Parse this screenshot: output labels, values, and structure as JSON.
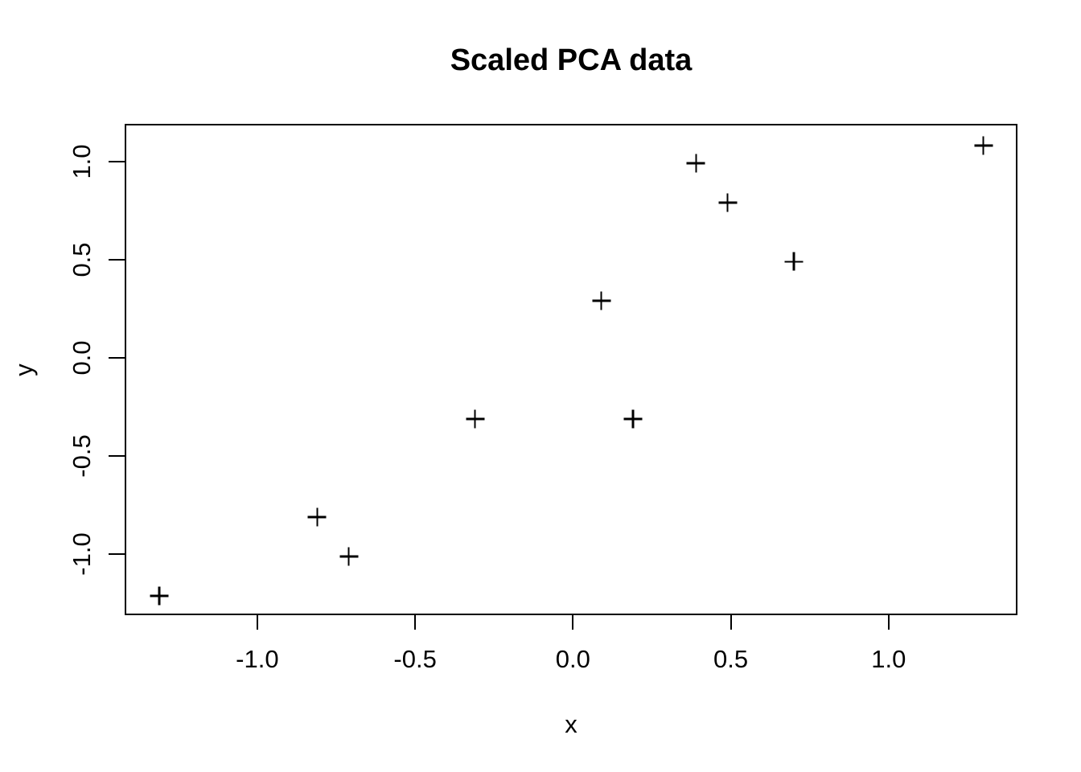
{
  "chart_data": {
    "type": "scatter",
    "title": "Scaled PCA data",
    "xlabel": "x",
    "ylabel": "y",
    "marker": "+",
    "marker_color": "#000000",
    "background": "#ffffff",
    "grid": false,
    "legend": false,
    "xlim": [
      -1.415,
      1.403
    ],
    "ylim": [
      -1.301,
      1.183
    ],
    "x_ticks": {
      "values": [
        -1.0,
        -0.5,
        0.0,
        0.5,
        1.0
      ],
      "labels": [
        "-1.0",
        "-0.5",
        "0.0",
        "0.5",
        "1.0"
      ]
    },
    "y_ticks": {
      "values": [
        -1.0,
        -0.5,
        0.0,
        0.5,
        1.0
      ],
      "labels": [
        "-1.0",
        "-0.5",
        "0.0",
        "0.5",
        "1.0"
      ]
    },
    "points": [
      {
        "x": -1.31,
        "y": -1.21
      },
      {
        "x": -0.81,
        "y": -0.81
      },
      {
        "x": -0.71,
        "y": -1.01
      },
      {
        "x": -0.31,
        "y": -0.31
      },
      {
        "x": 0.09,
        "y": 0.29
      },
      {
        "x": 0.19,
        "y": -0.31
      },
      {
        "x": 0.39,
        "y": 0.99
      },
      {
        "x": 0.49,
        "y": 0.79
      },
      {
        "x": 0.7,
        "y": 0.49
      },
      {
        "x": 1.3,
        "y": 1.08
      }
    ]
  }
}
